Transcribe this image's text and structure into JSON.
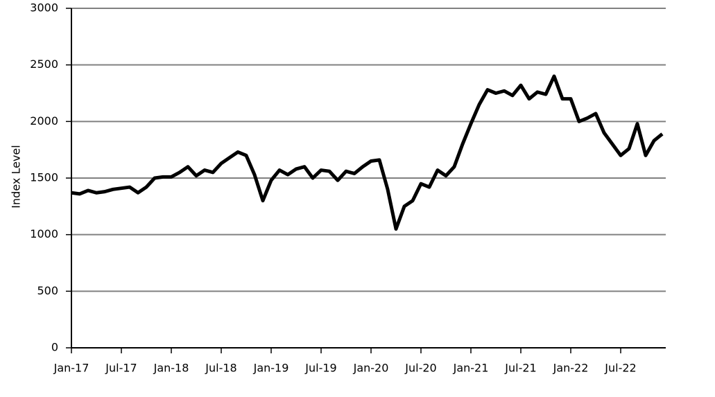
{
  "chart_data": {
    "type": "line",
    "y_label": "Index Level",
    "x": [
      "2017-01",
      "2017-02",
      "2017-03",
      "2017-04",
      "2017-05",
      "2017-06",
      "2017-07",
      "2017-08",
      "2017-09",
      "2017-10",
      "2017-11",
      "2017-12",
      "2018-01",
      "2018-02",
      "2018-03",
      "2018-04",
      "2018-05",
      "2018-06",
      "2018-07",
      "2018-08",
      "2018-09",
      "2018-10",
      "2018-11",
      "2018-12",
      "2019-01",
      "2019-02",
      "2019-03",
      "2019-04",
      "2019-05",
      "2019-06",
      "2019-07",
      "2019-08",
      "2019-09",
      "2019-10",
      "2019-11",
      "2019-12",
      "2020-01",
      "2020-02",
      "2020-03",
      "2020-04",
      "2020-05",
      "2020-06",
      "2020-07",
      "2020-08",
      "2020-09",
      "2020-10",
      "2020-11",
      "2020-12",
      "2021-01",
      "2021-02",
      "2021-03",
      "2021-04",
      "2021-05",
      "2021-06",
      "2021-07",
      "2021-08",
      "2021-09",
      "2021-10",
      "2021-11",
      "2021-12",
      "2022-01",
      "2022-02",
      "2022-03",
      "2022-04",
      "2022-05",
      "2022-06",
      "2022-07",
      "2022-08",
      "2022-09",
      "2022-10",
      "2022-11",
      "2022-12"
    ],
    "series": [
      {
        "name": "Index Level",
        "color": "#000000",
        "values": [
          1370,
          1360,
          1390,
          1370,
          1380,
          1400,
          1410,
          1420,
          1370,
          1420,
          1500,
          1510,
          1510,
          1550,
          1600,
          1520,
          1570,
          1550,
          1630,
          1680,
          1730,
          1700,
          1530,
          1300,
          1480,
          1570,
          1530,
          1580,
          1600,
          1500,
          1570,
          1560,
          1480,
          1560,
          1540,
          1600,
          1650,
          1660,
          1400,
          1050,
          1250,
          1300,
          1450,
          1420,
          1570,
          1520,
          1600,
          1800,
          1980,
          2150,
          2280,
          2250,
          2270,
          2230,
          2320,
          2200,
          2260,
          2240,
          2400,
          2200,
          2200,
          2000,
          2030,
          2070,
          1900,
          1800,
          1700,
          1760,
          1980,
          1700,
          1830,
          1890
        ]
      }
    ],
    "xlim": [
      "2017-01",
      "2023-01"
    ],
    "xticks": [
      {
        "value": "2017-01",
        "label": "Jan-17"
      },
      {
        "value": "2017-07",
        "label": "Jul-17"
      },
      {
        "value": "2018-01",
        "label": "Jan-18"
      },
      {
        "value": "2018-07",
        "label": "Jul-18"
      },
      {
        "value": "2019-01",
        "label": "Jan-19"
      },
      {
        "value": "2019-07",
        "label": "Jul-19"
      },
      {
        "value": "2020-01",
        "label": "Jan-20"
      },
      {
        "value": "2020-07",
        "label": "Jul-20"
      },
      {
        "value": "2021-01",
        "label": "Jan-21"
      },
      {
        "value": "2021-07",
        "label": "Jul-21"
      },
      {
        "value": "2022-01",
        "label": "Jan-22"
      },
      {
        "value": "2022-07",
        "label": "Jul-22"
      }
    ],
    "ylim": [
      0,
      3000
    ],
    "yticks": [
      0,
      500,
      1000,
      1500,
      2000,
      2500,
      3000
    ],
    "grid": true
  }
}
